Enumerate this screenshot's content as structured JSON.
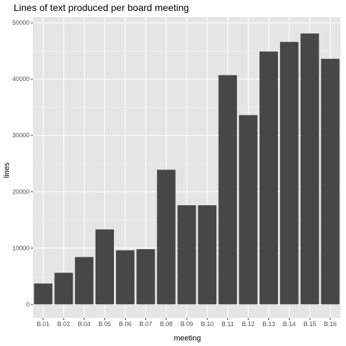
{
  "chart_data": {
    "type": "bar",
    "title": "Lines of text produced per board meeting",
    "xlabel": "meeting",
    "ylabel": "lines",
    "categories": [
      "B.01",
      "B.02",
      "B.04",
      "B.05",
      "B.06",
      "B.07",
      "B.08",
      "B.09",
      "B.10",
      "B.11",
      "B.12",
      "B.13",
      "B.14",
      "B.15",
      "B.16"
    ],
    "values": [
      3700,
      5600,
      8400,
      13300,
      9600,
      9800,
      23900,
      17600,
      17600,
      40700,
      33600,
      44900,
      46600,
      48100,
      43600
    ],
    "ylim": [
      -2400,
      51000
    ],
    "yticks": [
      0,
      10000,
      20000,
      30000,
      40000,
      50000
    ],
    "ytick_labels": [
      "0",
      "10000",
      "20000",
      "30000",
      "40000",
      "50000"
    ],
    "grid": true,
    "colors": {
      "bar": "#474747",
      "panel": "#e5e5e5",
      "grid_major": "#ffffff",
      "grid_minor": "#f2f2f2",
      "tick_text": "#4d4d4d",
      "tick_mark": "#333333"
    }
  }
}
